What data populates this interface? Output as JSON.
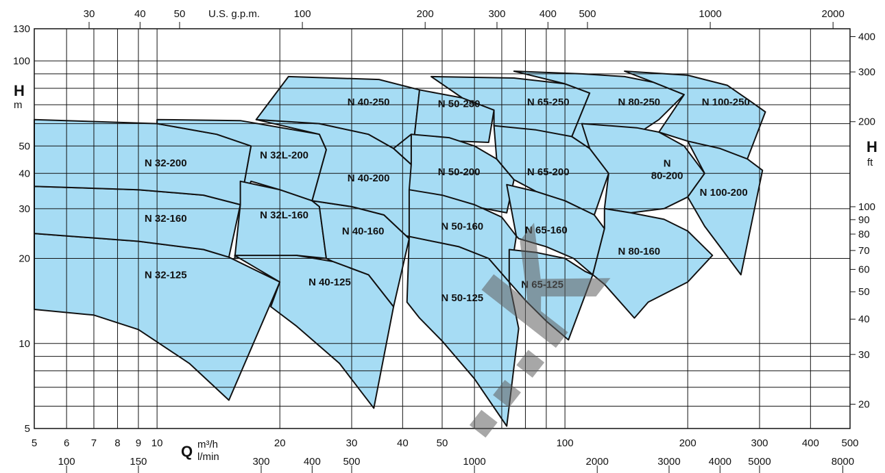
{
  "chart_data": {
    "type": "area",
    "title": "",
    "x_axis": {
      "bottom_label_symbol": "Q",
      "bottom_unit_primary": "m³/h",
      "bottom_unit_secondary": "l/min",
      "top_unit": "U.S. g.p.m.",
      "scale": "log",
      "range": [
        5,
        500
      ],
      "ticks_m3h": [
        5,
        6,
        7,
        8,
        9,
        10,
        20,
        30,
        40,
        50,
        100,
        200,
        300,
        400,
        500
      ],
      "ticks_lmin": [
        100,
        150,
        300,
        400,
        500,
        1000,
        2000,
        3000,
        4000,
        5000,
        8000
      ],
      "ticks_gpm": [
        30,
        40,
        50,
        100,
        200,
        300,
        400,
        500,
        1000,
        2000
      ]
    },
    "y_axis": {
      "left_label_symbol": "H",
      "left_unit": "m",
      "right_label_symbol": "H",
      "right_unit": "ft",
      "scale": "log",
      "range": [
        5,
        130
      ],
      "ticks_m": [
        5,
        10,
        20,
        30,
        40,
        50,
        100,
        130
      ],
      "ticks_ft": [
        20,
        30,
        40,
        50,
        60,
        70,
        80,
        90,
        100,
        200,
        300,
        400
      ]
    },
    "grid": true,
    "watermark": "...K",
    "series": [
      {
        "name": "N 32-125",
        "label_at": [
          10.5,
          17.5
        ],
        "polygon": [
          [
            5,
            24.5
          ],
          [
            9,
            23
          ],
          [
            13,
            21.5
          ],
          [
            15,
            20.2
          ],
          [
            20,
            16.5
          ],
          [
            15,
            6.3
          ],
          [
            12,
            8.5
          ],
          [
            9,
            11.2
          ],
          [
            7,
            12.6
          ],
          [
            5,
            13.2
          ]
        ]
      },
      {
        "name": "N 32-160",
        "label_at": [
          10.5,
          27.7
        ],
        "polygon": [
          [
            5,
            36
          ],
          [
            9,
            35
          ],
          [
            13,
            33.5
          ],
          [
            16,
            31
          ],
          [
            15,
            20.2
          ],
          [
            13,
            21.5
          ],
          [
            9,
            23
          ],
          [
            5,
            24.5
          ]
        ]
      },
      {
        "name": "N 32-200",
        "label_at": [
          10.5,
          43.5
        ],
        "polygon": [
          [
            5,
            62
          ],
          [
            10,
            60
          ],
          [
            14,
            55
          ],
          [
            17,
            50
          ],
          [
            16,
            31
          ],
          [
            13,
            33.5
          ],
          [
            9,
            35
          ],
          [
            5,
            36
          ]
        ]
      },
      {
        "name": "N 32L-200",
        "label_at": [
          20.5,
          46.5
        ],
        "polygon": [
          [
            10,
            62
          ],
          [
            16,
            61.5
          ],
          [
            25,
            55
          ],
          [
            26,
            48.5
          ],
          [
            24,
            32
          ],
          [
            20,
            35
          ],
          [
            17,
            37.5
          ],
          [
            16,
            31
          ],
          [
            17,
            50
          ],
          [
            14,
            55
          ],
          [
            10,
            60
          ]
        ]
      },
      {
        "name": "N 32L-160",
        "label_at": [
          20.5,
          28.5
        ],
        "polygon": [
          [
            16,
            37.5
          ],
          [
            20,
            35
          ],
          [
            24,
            32
          ],
          [
            25,
            30.5
          ],
          [
            26,
            20
          ],
          [
            22,
            20.5
          ],
          [
            15.5,
            20
          ],
          [
            16,
            31
          ]
        ]
      },
      {
        "name": "N 40-125",
        "label_at": [
          26.5,
          16.5
        ],
        "polygon": [
          [
            15.5,
            20.5
          ],
          [
            22,
            20.5
          ],
          [
            27,
            19.5
          ],
          [
            33,
            17.5
          ],
          [
            38,
            13.5
          ],
          [
            34,
            5.9
          ],
          [
            28,
            8.5
          ],
          [
            22,
            11.5
          ],
          [
            19,
            13.5
          ],
          [
            20,
            16.5
          ]
        ]
      },
      {
        "name": "N 40-160",
        "label_at": [
          32,
          25.0
        ],
        "polygon": [
          [
            24,
            32
          ],
          [
            30,
            30.5
          ],
          [
            36,
            28.5
          ],
          [
            41.5,
            23.5
          ],
          [
            38,
            13.5
          ],
          [
            33,
            17.5
          ],
          [
            27,
            19.5
          ],
          [
            26,
            20
          ],
          [
            25,
            30.5
          ]
        ]
      },
      {
        "name": "N 40-200",
        "label_at": [
          33,
          38.5
        ],
        "polygon": [
          [
            17.5,
            62
          ],
          [
            25,
            60
          ],
          [
            33,
            55
          ],
          [
            38,
            49
          ],
          [
            42,
            43
          ],
          [
            41.5,
            23.5
          ],
          [
            36,
            28.5
          ],
          [
            30,
            30.5
          ],
          [
            24,
            32
          ],
          [
            26,
            48.5
          ],
          [
            25,
            55
          ]
        ]
      },
      {
        "name": "N 40-250",
        "label_at": [
          33,
          71.5
        ],
        "polygon": [
          [
            21,
            88
          ],
          [
            35,
            86
          ],
          [
            44,
            79
          ],
          [
            42,
            43
          ],
          [
            38,
            49
          ],
          [
            33,
            55
          ],
          [
            25,
            60
          ],
          [
            17.5,
            62
          ]
        ]
      },
      {
        "name": "N 50-250",
        "label_at": [
          55,
          70.5
        ],
        "polygon": [
          [
            44,
            79
          ],
          [
            56,
            74
          ],
          [
            67,
            67
          ],
          [
            65,
            51.5
          ],
          [
            55,
            52
          ],
          [
            46,
            53.5
          ],
          [
            42,
            55
          ],
          [
            38,
            49
          ],
          [
            42,
            43
          ],
          [
            44,
            79
          ]
        ]
      },
      {
        "name": "N 50-200",
        "label_at": [
          55,
          40.5
        ],
        "polygon": [
          [
            42,
            55
          ],
          [
            52,
            53.5
          ],
          [
            60,
            50
          ],
          [
            68,
            45
          ],
          [
            75,
            38
          ],
          [
            72,
            29
          ],
          [
            60,
            30.5
          ],
          [
            48,
            33
          ],
          [
            41.5,
            35
          ],
          [
            42,
            43
          ]
        ]
      },
      {
        "name": "N 50-125",
        "label_at": [
          56,
          14.5
        ],
        "polygon": [
          [
            41,
            24
          ],
          [
            55,
            22
          ],
          [
            65,
            20
          ],
          [
            73,
            16.5
          ],
          [
            77,
            11.3
          ],
          [
            72,
            5.1
          ],
          [
            60,
            7.5
          ],
          [
            50,
            10.2
          ],
          [
            44,
            12.3
          ],
          [
            41,
            14
          ],
          [
            41.5,
            23.5
          ]
        ]
      },
      {
        "name": "N 50-160",
        "label_at": [
          56,
          26.0
        ],
        "polygon": [
          [
            41.5,
            35
          ],
          [
            50,
            33.5
          ],
          [
            60,
            31
          ],
          [
            70,
            28
          ],
          [
            76,
            24
          ],
          [
            73,
            16.5
          ],
          [
            65,
            20
          ],
          [
            55,
            22
          ],
          [
            41,
            24
          ],
          [
            41.5,
            23.5
          ]
        ]
      },
      {
        "name": "N 65-250",
        "label_at": [
          91,
          71.5
        ],
        "polygon": [
          [
            47,
            88
          ],
          [
            75,
            87
          ],
          [
            100,
            83
          ],
          [
            115,
            77
          ],
          [
            104,
            54
          ],
          [
            90,
            55
          ],
          [
            75,
            57
          ],
          [
            67,
            59
          ],
          [
            67,
            67
          ],
          [
            56,
            74
          ]
        ]
      },
      {
        "name": "N 65-200",
        "label_at": [
          91,
          40.5
        ],
        "polygon": [
          [
            67,
            59
          ],
          [
            85,
            57
          ],
          [
            104,
            54
          ],
          [
            115,
            49
          ],
          [
            128,
            40
          ],
          [
            118,
            28.5
          ],
          [
            100,
            32
          ],
          [
            85,
            34.5
          ],
          [
            75,
            38
          ],
          [
            68,
            45
          ]
        ]
      },
      {
        "name": "N 65-160",
        "label_at": [
          90,
          25.2
        ],
        "polygon": [
          [
            72,
            36.5
          ],
          [
            85,
            34.5
          ],
          [
            100,
            32
          ],
          [
            118,
            28.5
          ],
          [
            125,
            25.5
          ],
          [
            117,
            17.5
          ],
          [
            105,
            20
          ],
          [
            90,
            22
          ],
          [
            77,
            23.5
          ],
          [
            76,
            24
          ]
        ]
      },
      {
        "name": "N 65-125",
        "label_at": [
          88,
          16.2
        ],
        "polygon": [
          [
            73,
            21.5
          ],
          [
            85,
            21
          ],
          [
            100,
            20
          ],
          [
            112,
            18
          ],
          [
            117,
            17.5
          ],
          [
            102,
            10.3
          ],
          [
            90,
            12
          ],
          [
            80,
            14.2
          ],
          [
            73,
            16.5
          ]
        ]
      },
      {
        "name": "N 80-250",
        "label_at": [
          152,
          71.5
        ],
        "polygon": [
          [
            75,
            92
          ],
          [
            110,
            90
          ],
          [
            140,
            88
          ],
          [
            165,
            84
          ],
          [
            196,
            76
          ],
          [
            170,
            62
          ],
          [
            150,
            55
          ],
          [
            115,
            49
          ],
          [
            104,
            54
          ],
          [
            115,
            77
          ],
          [
            100,
            83
          ]
        ]
      },
      {
        "name": "N 80-200",
        "label_at": [
          178,
          39.5
        ],
        "polygon": [
          [
            110,
            60
          ],
          [
            150,
            58
          ],
          [
            170,
            56
          ],
          [
            196,
            50
          ],
          [
            220,
            40
          ],
          [
            200,
            33
          ],
          [
            175,
            30
          ],
          [
            145,
            29
          ],
          [
            125,
            30
          ],
          [
            128,
            40
          ],
          [
            115,
            49
          ]
        ]
      },
      {
        "name": "N 80-160",
        "label_at": [
          152,
          21.2
        ],
        "polygon": [
          [
            125,
            30
          ],
          [
            145,
            29
          ],
          [
            175,
            27.5
          ],
          [
            200,
            25
          ],
          [
            230,
            20.5
          ],
          [
            200,
            16.5
          ],
          [
            160,
            14
          ],
          [
            148,
            12.3
          ],
          [
            125,
            16.2
          ],
          [
            117,
            17.5
          ],
          [
            125,
            25.5
          ]
        ]
      },
      {
        "name": "N 100-250",
        "label_at": [
          248,
          71.5
        ],
        "polygon": [
          [
            140,
            92
          ],
          [
            200,
            89
          ],
          [
            250,
            82
          ],
          [
            285,
            72
          ],
          [
            310,
            66
          ],
          [
            280,
            45
          ],
          [
            240,
            47
          ],
          [
            200,
            52
          ],
          [
            170,
            56
          ],
          [
            196,
            76
          ],
          [
            165,
            84
          ]
        ]
      },
      {
        "name": "N 100-200",
        "label_at": [
          245,
          34.3
        ],
        "polygon": [
          [
            200,
            52
          ],
          [
            240,
            49
          ],
          [
            280,
            45
          ],
          [
            305,
            41
          ],
          [
            270,
            17.5
          ],
          [
            240,
            22
          ],
          [
            220,
            26
          ],
          [
            200,
            33
          ],
          [
            220,
            40
          ]
        ]
      }
    ]
  }
}
